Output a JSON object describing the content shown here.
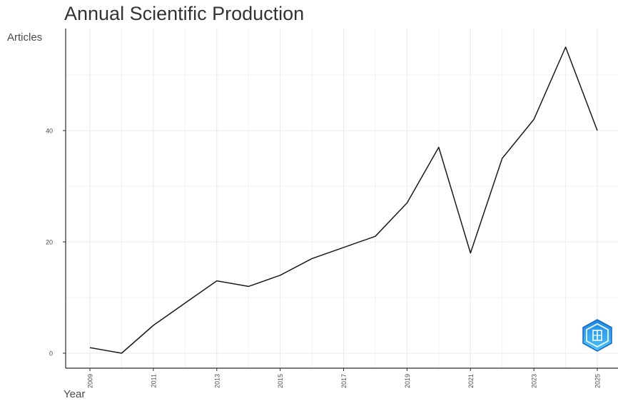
{
  "chart_data": {
    "type": "line",
    "title": "Annual Scientific Production",
    "xlabel": "Year",
    "ylabel": "Articles",
    "x": [
      2009,
      2010,
      2011,
      2012,
      2013,
      2014,
      2015,
      2016,
      2017,
      2018,
      2019,
      2020,
      2021,
      2022,
      2023,
      2024,
      2025
    ],
    "y": [
      1,
      0,
      5,
      9,
      13,
      12,
      14,
      17,
      19,
      21,
      27,
      37,
      18,
      35,
      42,
      55,
      40
    ],
    "xticks": [
      2009,
      2011,
      2013,
      2015,
      2017,
      2019,
      2021,
      2023,
      2025
    ],
    "yticks": [
      0,
      20,
      40
    ],
    "xlim": [
      2009,
      2025
    ],
    "ylim": [
      0,
      55
    ],
    "grid": true,
    "line_color": "#1a1a1a",
    "grid_color": "#ebebeb"
  },
  "logo": {
    "icon": "shield-logo-icon",
    "colors": [
      "#1e88e5",
      "#4fc3f7"
    ]
  }
}
